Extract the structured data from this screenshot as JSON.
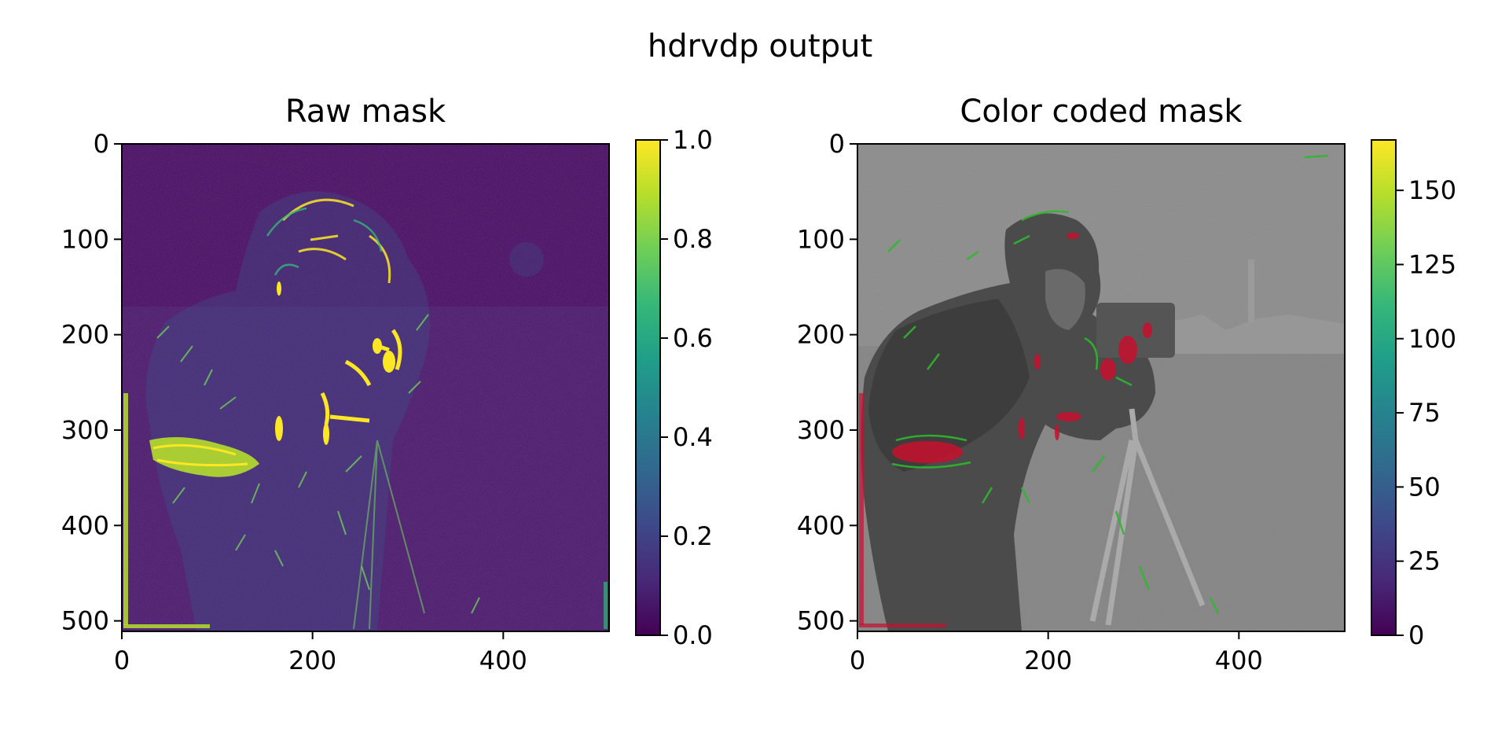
{
  "title": "hdrvdp output",
  "chart_data": [
    {
      "type": "heatmap",
      "title": "Raw mask",
      "xlabel": "",
      "ylabel": "",
      "x_ticks": [
        0,
        200,
        400
      ],
      "y_ticks": [
        0,
        100,
        200,
        300,
        400,
        500
      ],
      "xlim": [
        0,
        511
      ],
      "ylim": [
        511,
        0
      ],
      "colormap": "viridis",
      "colorbar": {
        "range": [
          0.0,
          1.0
        ],
        "ticks": [
          "0.0",
          "0.2",
          "0.4",
          "0.6",
          "0.8",
          "1.0"
        ],
        "tick_values": [
          0.0,
          0.2,
          0.4,
          0.6,
          0.8,
          1.0
        ]
      },
      "image_description": "edge-detection style mask of a photographer with camera; mostly dark purple with bright yellow edges"
    },
    {
      "type": "heatmap",
      "title": "Color coded mask",
      "xlabel": "",
      "ylabel": "",
      "x_ticks": [
        0,
        200,
        400
      ],
      "y_ticks": [
        0,
        100,
        200,
        300,
        400,
        500
      ],
      "xlim": [
        0,
        511
      ],
      "ylim": [
        511,
        0
      ],
      "colormap": "viridis",
      "colorbar": {
        "range": [
          0,
          167
        ],
        "ticks": [
          "0",
          "25",
          "50",
          "75",
          "100",
          "125",
          "150"
        ],
        "tick_values": [
          0,
          25,
          50,
          75,
          100,
          125,
          150
        ]
      },
      "image_description": "grayscale cameraman photo with green and red highlighted difference regions"
    }
  ],
  "colors": {
    "viridis": [
      "#440154",
      "#482878",
      "#3e4989",
      "#31688e",
      "#26828e",
      "#1f9e89",
      "#35b779",
      "#6ece58",
      "#b5de2b",
      "#fde725"
    ],
    "mask_bg": "#460a5d",
    "gray_bg": "#848484",
    "highlight_green": "#2eb82e",
    "highlight_red": "#c8102e"
  }
}
